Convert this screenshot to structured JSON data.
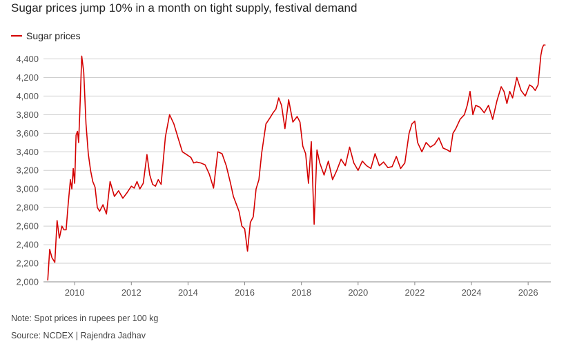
{
  "chart_data": {
    "type": "line",
    "title": "Sugar prices jump 10% in a month on tight supply, festival demand",
    "legend_position": "top-left",
    "grid": true,
    "xlabel": "",
    "ylabel": "",
    "ylim": [
      2000,
      4500
    ],
    "xlim": [
      2008.9,
      2026.8
    ],
    "y_ticks": [
      2000,
      2200,
      2400,
      2600,
      2800,
      3000,
      3200,
      3400,
      3600,
      3800,
      4000,
      4200,
      4400
    ],
    "y_tick_labels": [
      "2,000",
      "2,200",
      "2,400",
      "2,600",
      "2,800",
      "3,000",
      "3,200",
      "3,400",
      "3,600",
      "3,800",
      "4,000",
      "4,200",
      "4,400"
    ],
    "x_ticks": [
      2010,
      2012,
      2014,
      2016,
      2018,
      2020,
      2022,
      2024,
      2026
    ],
    "x_tick_labels": [
      "2010",
      "2012",
      "2014",
      "2016",
      "2018",
      "2020",
      "2022",
      "2024",
      "2026"
    ],
    "series": [
      {
        "name": "Sugar prices",
        "color": "#d40000",
        "x": [
          2009.05,
          2009.12,
          2009.2,
          2009.3,
          2009.38,
          2009.46,
          2009.55,
          2009.62,
          2009.7,
          2009.77,
          2009.85,
          2009.9,
          2009.95,
          2010.0,
          2010.05,
          2010.1,
          2010.14,
          2010.18,
          2010.25,
          2010.32,
          2010.4,
          2010.48,
          2010.56,
          2010.64,
          2010.72,
          2010.8,
          2010.88,
          2011.0,
          2011.12,
          2011.25,
          2011.4,
          2011.55,
          2011.7,
          2011.85,
          2012.0,
          2012.1,
          2012.2,
          2012.3,
          2012.42,
          2012.55,
          2012.65,
          2012.75,
          2012.85,
          2012.95,
          2013.05,
          2013.2,
          2013.35,
          2013.5,
          2013.65,
          2013.8,
          2013.95,
          2014.1,
          2014.2,
          2014.3,
          2014.45,
          2014.6,
          2014.75,
          2014.9,
          2015.05,
          2015.2,
          2015.35,
          2015.5,
          2015.6,
          2015.7,
          2015.8,
          2015.9,
          2016.0,
          2016.1,
          2016.2,
          2016.3,
          2016.4,
          2016.5,
          2016.6,
          2016.75,
          2016.9,
          2017.0,
          2017.1,
          2017.2,
          2017.3,
          2017.42,
          2017.55,
          2017.7,
          2017.85,
          2017.95,
          2018.05,
          2018.15,
          2018.25,
          2018.35,
          2018.45,
          2018.55,
          2018.65,
          2018.8,
          2018.95,
          2019.1,
          2019.25,
          2019.4,
          2019.55,
          2019.7,
          2019.85,
          2020.0,
          2020.15,
          2020.3,
          2020.45,
          2020.6,
          2020.75,
          2020.9,
          2021.05,
          2021.2,
          2021.35,
          2021.5,
          2021.65,
          2021.8,
          2021.9,
          2022.0,
          2022.1,
          2022.25,
          2022.4,
          2022.55,
          2022.7,
          2022.85,
          2023.0,
          2023.15,
          2023.25,
          2023.35,
          2023.45,
          2023.6,
          2023.75,
          2023.85,
          2023.95,
          2024.05,
          2024.15,
          2024.3,
          2024.45,
          2024.6,
          2024.75,
          2024.9,
          2025.05,
          2025.15,
          2025.25,
          2025.35,
          2025.45,
          2025.6,
          2025.75,
          2025.9,
          2026.05,
          2026.15,
          2026.25,
          2026.35,
          2026.45,
          2026.5,
          2026.55,
          2026.6
        ],
        "y": [
          2020,
          2350,
          2260,
          2210,
          2660,
          2470,
          2600,
          2560,
          2560,
          2830,
          3100,
          3000,
          3220,
          3060,
          3580,
          3620,
          3500,
          3820,
          4430,
          4260,
          3700,
          3380,
          3200,
          3080,
          3020,
          2800,
          2760,
          2830,
          2730,
          3080,
          2920,
          2980,
          2900,
          2960,
          3030,
          3010,
          3080,
          3000,
          3060,
          3370,
          3150,
          3050,
          3030,
          3100,
          3050,
          3560,
          3800,
          3700,
          3550,
          3400,
          3370,
          3340,
          3280,
          3290,
          3280,
          3260,
          3160,
          3010,
          3400,
          3380,
          3250,
          3060,
          2920,
          2840,
          2760,
          2600,
          2570,
          2330,
          2640,
          2700,
          3000,
          3100,
          3390,
          3700,
          3770,
          3820,
          3860,
          3980,
          3900,
          3650,
          3960,
          3720,
          3780,
          3720,
          3460,
          3380,
          3060,
          3510,
          2620,
          3420,
          3280,
          3150,
          3300,
          3100,
          3200,
          3320,
          3250,
          3450,
          3280,
          3200,
          3300,
          3250,
          3220,
          3380,
          3250,
          3290,
          3230,
          3240,
          3350,
          3220,
          3280,
          3600,
          3700,
          3730,
          3500,
          3400,
          3500,
          3450,
          3480,
          3550,
          3440,
          3420,
          3400,
          3600,
          3650,
          3750,
          3800,
          3900,
          4050,
          3800,
          3900,
          3880,
          3820,
          3900,
          3750,
          3950,
          4100,
          4050,
          3920,
          4050,
          3980,
          4200,
          4060,
          4000,
          4120,
          4100,
          4060,
          4120,
          4440,
          4520,
          4550,
          4550
        ]
      }
    ]
  },
  "note": "Note: Spot prices in rupees per 100 kg",
  "source": "Source: NCDEX | Rajendra Jadhav"
}
